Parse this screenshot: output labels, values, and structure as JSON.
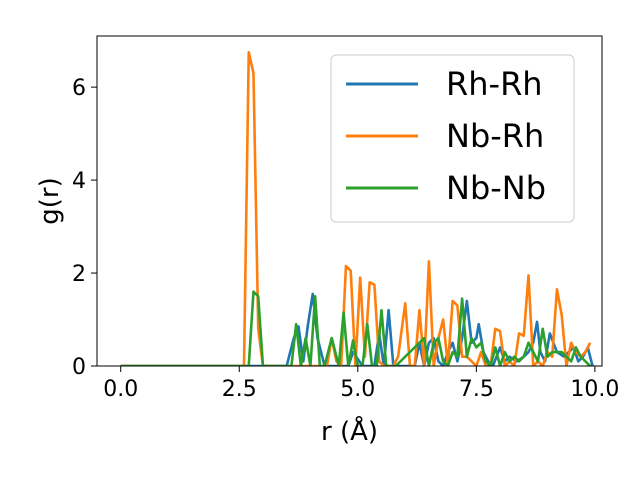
{
  "chart_data": {
    "type": "line",
    "title": "",
    "xlabel": "r (Å)",
    "ylabel": "g(r)",
    "xlim": [
      -0.5,
      10.15
    ],
    "ylim": [
      0,
      7.1
    ],
    "xticks": [
      0.0,
      2.5,
      5.0,
      7.5,
      10.0
    ],
    "xtick_labels": [
      "0.0",
      "2.5",
      "5.0",
      "7.5",
      "10.0"
    ],
    "yticks": [
      0,
      2,
      4,
      6
    ],
    "ytick_labels": [
      "0",
      "2",
      "4",
      "6"
    ],
    "grid": false,
    "legend_position": "top-right",
    "series": [
      {
        "name": "Rh-Rh",
        "color": "#1f77b4",
        "x": [
          0.0,
          3.5,
          3.65,
          3.75,
          3.85,
          3.95,
          4.05,
          4.15,
          4.3,
          4.8,
          4.9,
          5.1,
          5.35,
          5.45,
          5.55,
          5.65,
          5.75,
          5.85,
          6.2,
          6.3,
          6.4,
          6.5,
          6.6,
          6.7,
          6.8,
          6.9,
          7.0,
          7.05,
          7.1,
          7.2,
          7.3,
          7.4,
          7.5,
          7.55,
          7.65,
          7.75,
          7.85,
          8.0,
          8.1,
          8.2,
          8.35,
          8.5,
          8.6,
          8.7,
          8.78,
          8.85,
          8.95,
          9.05,
          9.2,
          9.35,
          9.45,
          9.55,
          9.65,
          9.75,
          9.85,
          9.95
        ],
        "y": [
          0,
          0,
          0.6,
          0.85,
          0.1,
          0.9,
          1.55,
          0.6,
          0,
          0,
          0.3,
          0,
          0,
          0.7,
          0,
          1.2,
          0,
          0,
          0,
          0.5,
          0,
          0.5,
          0.6,
          0.1,
          0,
          0.3,
          0.5,
          0.3,
          0.1,
          0.6,
          1.4,
          0.5,
          0.6,
          0.9,
          0.3,
          0.1,
          0,
          0.4,
          0.1,
          0.2,
          0.1,
          0.2,
          0.3,
          0.5,
          0.95,
          0.3,
          0.1,
          0.7,
          0.3,
          0.2,
          0.3,
          0.4,
          0.1,
          0.2,
          0.4,
          0
        ]
      },
      {
        "name": "Nb-Rh",
        "color": "#ff7f0e",
        "x": [
          0.0,
          2.6,
          2.7,
          2.8,
          2.9,
          3.0,
          4.35,
          4.45,
          4.55,
          4.65,
          4.75,
          4.85,
          4.95,
          5.05,
          5.15,
          5.25,
          5.35,
          5.45,
          5.55,
          5.65,
          5.75,
          5.85,
          6.0,
          6.1,
          6.2,
          6.3,
          6.4,
          6.5,
          6.6,
          6.7,
          6.8,
          6.9,
          7.0,
          7.1,
          7.2,
          7.3,
          7.4,
          7.5,
          7.6,
          7.7,
          7.8,
          7.9,
          8.0,
          8.1,
          8.2,
          8.3,
          8.4,
          8.5,
          8.6,
          8.7,
          8.8,
          8.9,
          9.0,
          9.1,
          9.2,
          9.3,
          9.4,
          9.5,
          9.6,
          9.7,
          9.8,
          9.9
        ],
        "y": [
          0,
          0,
          6.75,
          6.3,
          0.8,
          0,
          0,
          0.6,
          0.1,
          0,
          2.15,
          2.05,
          0,
          1.9,
          0.2,
          1.8,
          1.75,
          0.1,
          0,
          0,
          0,
          0.2,
          1.35,
          0,
          0,
          1.2,
          0,
          2.25,
          0,
          0.6,
          1.0,
          0,
          1.4,
          1.3,
          0.2,
          0.2,
          0.1,
          0,
          0.3,
          0,
          0,
          0.8,
          0.75,
          0,
          0.1,
          0,
          0.7,
          0.65,
          1.95,
          0,
          0.1,
          0,
          0.3,
          0.2,
          1.65,
          1.1,
          0,
          0.5,
          0.3,
          0.2,
          0.3,
          0.5
        ]
      },
      {
        "name": "Nb-Nb",
        "color": "#2ca02c",
        "x": [
          0.0,
          2.7,
          2.8,
          2.9,
          3.0,
          3.6,
          3.7,
          3.8,
          3.9,
          4.0,
          4.1,
          4.2,
          4.3,
          4.45,
          4.6,
          4.7,
          4.8,
          4.9,
          5.0,
          5.1,
          5.2,
          5.3,
          5.4,
          5.5,
          5.6,
          5.7,
          5.8,
          6.4,
          6.5,
          6.6,
          6.7,
          6.8,
          6.9,
          7.0,
          7.1,
          7.2,
          7.3,
          7.4,
          7.5,
          7.6,
          7.7,
          7.8,
          7.9,
          8.0,
          8.1,
          8.2,
          8.3,
          8.4,
          8.5,
          8.6,
          8.7,
          8.8,
          8.9,
          9.0,
          9.1,
          9.2,
          9.3,
          9.4,
          9.5,
          9.6,
          9.7,
          9.8,
          9.9
        ],
        "y": [
          0,
          0,
          1.6,
          1.5,
          0,
          0,
          0.9,
          0,
          0.6,
          0,
          1.5,
          0,
          0,
          0.6,
          0,
          1.15,
          0,
          0.55,
          0,
          0,
          0.9,
          0,
          0,
          1.2,
          0,
          0,
          0,
          0.6,
          0,
          0.5,
          0.6,
          0.1,
          0,
          0.3,
          0.2,
          1.45,
          0.2,
          0.6,
          0.4,
          0.5,
          0.1,
          0,
          0.4,
          0,
          0.3,
          0.1,
          0.2,
          0.1,
          0.2,
          0.5,
          0.3,
          0.1,
          0.8,
          0.2,
          0.3,
          0.3,
          0.3,
          0.2,
          0.1,
          0.4,
          0.2,
          0.1,
          0
        ]
      }
    ]
  }
}
